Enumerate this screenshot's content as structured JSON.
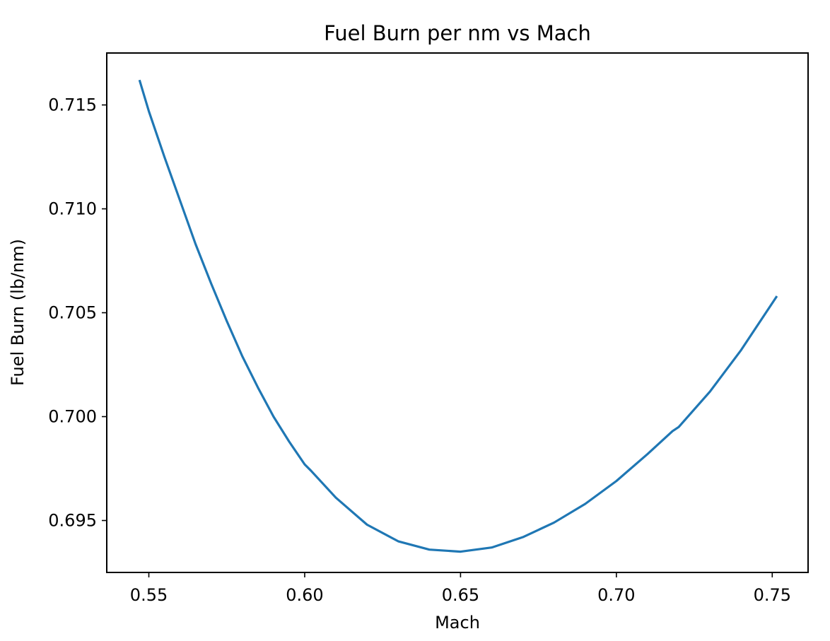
{
  "chart_data": {
    "type": "line",
    "title": "Fuel Burn per nm vs Mach",
    "xlabel": "Mach",
    "ylabel": "Fuel Burn (lb/nm)",
    "xlim": [
      0.5365,
      0.7615
    ],
    "ylim": [
      0.6925,
      0.7175
    ],
    "xticks": [
      0.55,
      0.6,
      0.65,
      0.7,
      0.75
    ],
    "xtick_labels": [
      "0.55",
      "0.60",
      "0.65",
      "0.70",
      "0.75"
    ],
    "yticks": [
      0.695,
      0.7,
      0.705,
      0.71,
      0.715
    ],
    "ytick_labels": [
      "0.695",
      "0.700",
      "0.705",
      "0.710",
      "0.715"
    ],
    "grid": false,
    "legend": null,
    "series": [
      {
        "color": "#1f77b4",
        "x": [
          0.547,
          0.55,
          0.555,
          0.56,
          0.565,
          0.57,
          0.575,
          0.58,
          0.585,
          0.59,
          0.595,
          0.6,
          0.602,
          0.61,
          0.62,
          0.63,
          0.64,
          0.65,
          0.66,
          0.67,
          0.68,
          0.69,
          0.7,
          0.71,
          0.718,
          0.72,
          0.73,
          0.74,
          0.7515
        ],
        "y": [
          0.7162,
          0.7147,
          0.7125,
          0.7104,
          0.7083,
          0.7064,
          0.7046,
          0.7029,
          0.7014,
          0.7,
          0.6988,
          0.6977,
          0.6974,
          0.6961,
          0.6948,
          0.694,
          0.6936,
          0.6935,
          0.6937,
          0.6942,
          0.6949,
          0.6958,
          0.6969,
          0.6982,
          0.6993,
          0.6995,
          0.7012,
          0.7032,
          0.7058
        ]
      }
    ]
  }
}
